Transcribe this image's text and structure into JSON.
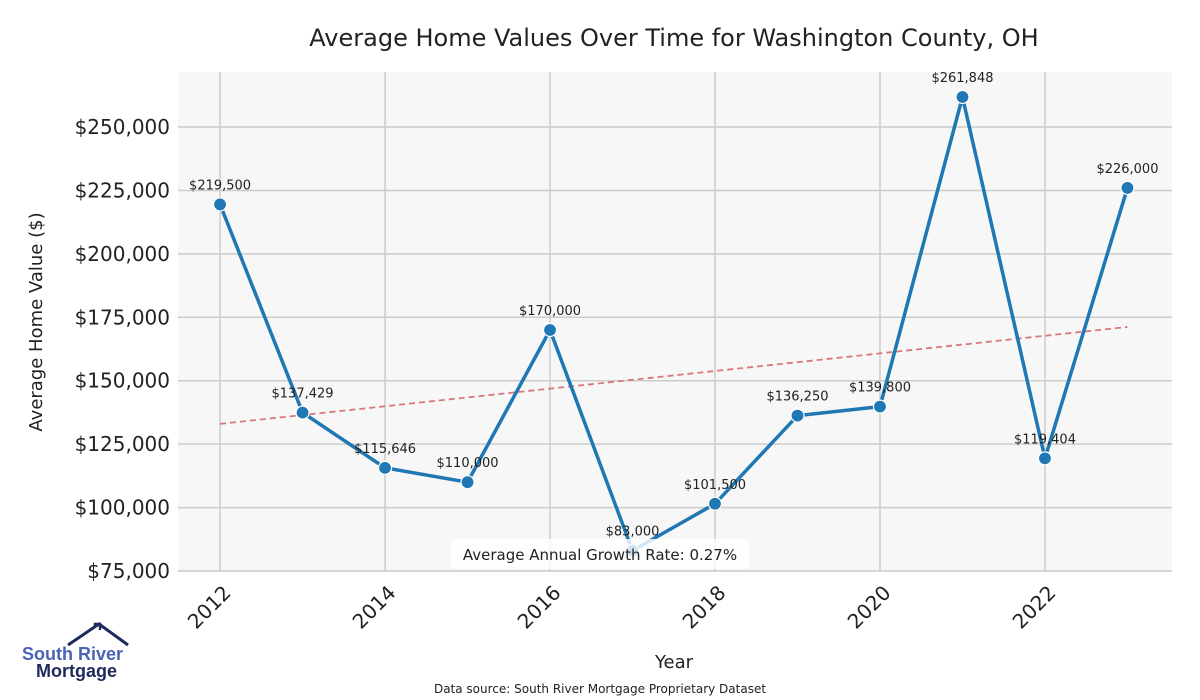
{
  "chart_data": {
    "type": "line",
    "title": "Average Home Values Over Time for Washington County, OH",
    "xlabel": "Year",
    "ylabel": "Average Home Value ($)",
    "x": [
      2012,
      2013,
      2014,
      2015,
      2016,
      2017,
      2018,
      2019,
      2020,
      2021,
      2022,
      2023
    ],
    "values": [
      219500,
      137429,
      115646,
      110000,
      170000,
      83000,
      101500,
      136250,
      139800,
      261848,
      119404,
      226000
    ],
    "data_labels": [
      "$219,500",
      "$137,429",
      "$115,646",
      "$110,000",
      "$170,000",
      "$83,000",
      "$101,500",
      "$136,250",
      "$139,800",
      "$261,848",
      "$119,404",
      "$226,000"
    ],
    "xticks": [
      2012,
      2014,
      2016,
      2018,
      2020,
      2022
    ],
    "xtick_labels": [
      "2012",
      "2014",
      "2016",
      "2018",
      "2020",
      "2022"
    ],
    "yticks": [
      75000,
      100000,
      125000,
      150000,
      175000,
      200000,
      225000,
      250000
    ],
    "ytick_labels": [
      "$75,000",
      "$100,000",
      "$125,000",
      "$150,000",
      "$175,000",
      "$200,000",
      "$225,000",
      "$250,000"
    ],
    "xlim": [
      2011.49,
      2023.54
    ],
    "ylim": [
      74600,
      271700
    ],
    "grid": true,
    "trendline": {
      "x": [
        2012,
        2023
      ],
      "y": [
        133000,
        171200
      ],
      "style": "dashed",
      "color": "#d9777a"
    },
    "line_color": "#1f77b4",
    "annotation": "Average Annual Growth Rate: 0.27%",
    "source": "Data source: South River Mortgage Proprietary Dataset"
  },
  "logo": {
    "line1": "South River",
    "line2": "Mortgage"
  }
}
